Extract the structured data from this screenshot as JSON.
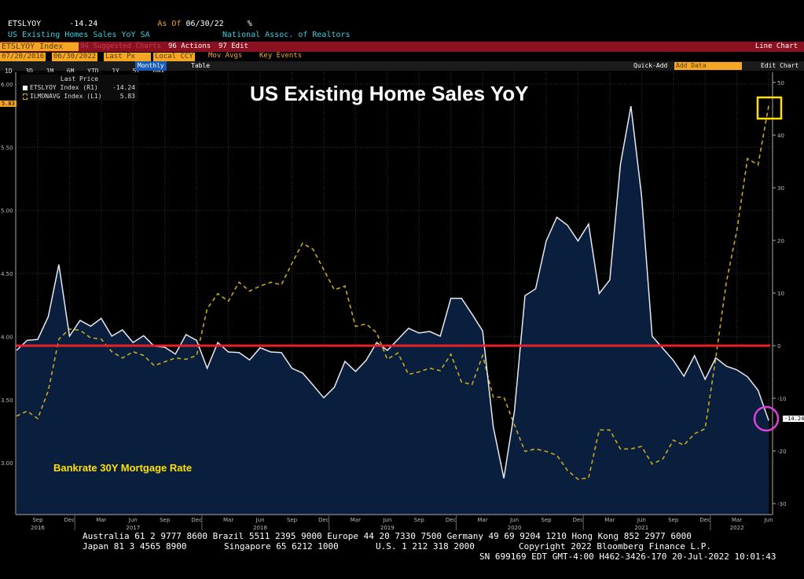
{
  "header": {
    "ticker": "ETSLYOY",
    "last_value": "-14.24",
    "as_of_label": "As Of",
    "as_of_date": "06/30/22",
    "unit": "%",
    "description": "US Existing Homes Sales YoY SA",
    "source": "National Assoc. of Realtors"
  },
  "toolbar": {
    "security": "ETSLYOY Index",
    "suggested": "94 Suggested Charts",
    "actions": "96 Actions",
    "edit": "97 Edit",
    "chart_type": "Line Chart",
    "start_date": "07/20/2016",
    "end_date": "06/30/2022",
    "price_field": "Last Px",
    "currency": "Local CCY",
    "mov_avg": "Mov Avgs",
    "key_events": "Key Events",
    "ranges": [
      "1D",
      "3D",
      "1M",
      "6M",
      "YTD",
      "1Y",
      "5Y",
      "Max"
    ],
    "frequency": "Monthly",
    "table": "Table",
    "quick_add": "Quick-Add",
    "add_data_placeholder": "Add Data",
    "edit_chart": "Edit Chart"
  },
  "legend": {
    "title": "Last Price",
    "items": [
      {
        "label": "ETSLYOY Index (R1)",
        "value": "-14.24"
      },
      {
        "label": "ILMONAVG Index (L1)",
        "value": "5.83"
      }
    ]
  },
  "annotations": {
    "title": "US Existing Home Sales YoY",
    "mortgage_label": "Bankrate 30Y Mortgage Rate",
    "left_last_label": "5.83",
    "right_last_label": "-14.24"
  },
  "footer": {
    "line1": "Australia 61 2 9777 8600 Brazil 5511 2395 9000 Europe 44 20 7330 7500 Germany 49 69 9204 1210 Hong Kong 852 2977 6000",
    "line2a": "Japan 81 3 4565 8900",
    "line2b": "Singapore 65 6212 1000",
    "line2c": "U.S. 1 212 318 2000",
    "line2d": "Copyright 2022 Bloomberg Finance L.P.",
    "line3": "SN 699169 EDT  GMT-4:00 H462-3426-170 20-Jul-2022 10:01:43"
  },
  "colors": {
    "home_sales": "#ffffff",
    "home_sales_fill": "#0a1f3d",
    "mortgage": "#c8a820",
    "zero_line": "#e8202a",
    "box": "#ffe000",
    "circle": "#e040e0"
  },
  "chart_data": {
    "type": "line",
    "x": [
      "2016-07",
      "2016-08",
      "2016-09",
      "2016-10",
      "2016-11",
      "2016-12",
      "2017-01",
      "2017-02",
      "2017-03",
      "2017-04",
      "2017-05",
      "2017-06",
      "2017-07",
      "2017-08",
      "2017-09",
      "2017-10",
      "2017-11",
      "2017-12",
      "2018-01",
      "2018-02",
      "2018-03",
      "2018-04",
      "2018-05",
      "2018-06",
      "2018-07",
      "2018-08",
      "2018-09",
      "2018-10",
      "2018-11",
      "2018-12",
      "2019-01",
      "2019-02",
      "2019-03",
      "2019-04",
      "2019-05",
      "2019-06",
      "2019-07",
      "2019-08",
      "2019-09",
      "2019-10",
      "2019-11",
      "2019-12",
      "2020-01",
      "2020-02",
      "2020-03",
      "2020-04",
      "2020-05",
      "2020-06",
      "2020-07",
      "2020-08",
      "2020-09",
      "2020-10",
      "2020-11",
      "2020-12",
      "2021-01",
      "2021-02",
      "2021-03",
      "2021-04",
      "2021-05",
      "2021-06",
      "2021-07",
      "2021-08",
      "2021-09",
      "2021-10",
      "2021-11",
      "2021-12",
      "2022-01",
      "2022-02",
      "2022-03",
      "2022-04",
      "2022-05",
      "2022-06"
    ],
    "x_tick_labels": [
      "Sep",
      "Dec",
      "Mar",
      "Jun",
      "Sep",
      "Dec",
      "Mar",
      "Jun",
      "Sep",
      "Dec",
      "Mar",
      "Jun",
      "Sep",
      "Dec",
      "Mar",
      "Jun",
      "Sep",
      "Dec",
      "Mar",
      "Jun",
      "Sep",
      "Dec",
      "Mar",
      "Jun"
    ],
    "year_labels": [
      "2016",
      "2017",
      "2018",
      "2019",
      "2020",
      "2021",
      "2022"
    ],
    "series": [
      {
        "name": "ETSLYOY Index (R1)",
        "axis": "right",
        "style": "area",
        "values": [
          -0.9,
          1.0,
          1.2,
          5.5,
          15.4,
          1.8,
          4.8,
          3.7,
          5.2,
          1.8,
          3.0,
          0.6,
          1.9,
          -0.1,
          -0.3,
          -1.6,
          2.1,
          1.0,
          -4.3,
          0.6,
          -1.2,
          -1.3,
          -2.7,
          -0.4,
          -1.2,
          -1.3,
          -4.3,
          -5.2,
          -7.5,
          -9.9,
          -7.9,
          -3.0,
          -4.9,
          -2.8,
          0.6,
          -0.9,
          1.2,
          3.3,
          2.4,
          2.7,
          1.8,
          9.0,
          9.0,
          6.0,
          2.8,
          -15.4,
          -25.2,
          -12.4,
          9.5,
          10.8,
          19.9,
          24.4,
          22.9,
          19.9,
          23.1,
          9.9,
          12.5,
          34.4,
          45.5,
          28.5,
          1.8,
          -0.5,
          -2.8,
          -5.8,
          -1.9,
          -6.4,
          -2.3,
          -3.9,
          -4.6,
          -5.9,
          -8.5,
          -14.24
        ]
      },
      {
        "name": "ILMONAVG Index (L1)",
        "axis": "left",
        "style": "dashed",
        "values": [
          3.37,
          3.41,
          3.35,
          3.57,
          3.98,
          4.06,
          4.05,
          3.99,
          3.98,
          3.88,
          3.83,
          3.88,
          3.85,
          3.77,
          3.8,
          3.83,
          3.82,
          3.85,
          4.22,
          4.34,
          4.28,
          4.43,
          4.36,
          4.4,
          4.43,
          4.41,
          4.58,
          4.74,
          4.69,
          4.53,
          4.37,
          4.4,
          4.08,
          4.1,
          4.03,
          3.82,
          3.87,
          3.7,
          3.72,
          3.75,
          3.73,
          3.86,
          3.64,
          3.62,
          3.85,
          3.52,
          3.52,
          3.3,
          3.09,
          3.11,
          3.09,
          3.06,
          2.94,
          2.87,
          2.88,
          3.26,
          3.26,
          3.11,
          3.11,
          3.13,
          2.99,
          3.03,
          3.18,
          3.14,
          3.23,
          3.27,
          3.83,
          4.43,
          4.84,
          5.41,
          5.36,
          5.83
        ]
      }
    ],
    "left_axis": {
      "ticks": [
        "6.00",
        "5.50",
        "5.00",
        "4.50",
        "4.00",
        "3.50",
        "3.00"
      ],
      "range": [
        2.75,
        6.0
      ]
    },
    "right_axis": {
      "ticks": [
        "50",
        "40",
        "30",
        "20",
        "10",
        "0",
        "-10",
        "-20",
        "-30"
      ],
      "range": [
        -32,
        50
      ]
    },
    "reference_line": {
      "axis": "right",
      "value": 0
    },
    "grid": true
  }
}
